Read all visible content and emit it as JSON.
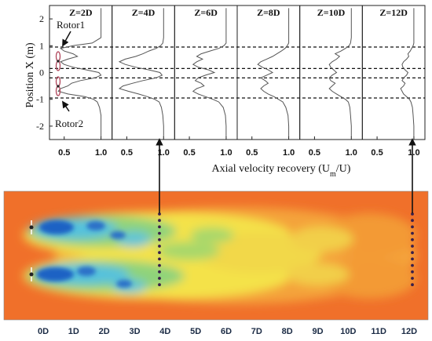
{
  "chart_data": [
    {
      "type": "line",
      "panels": [
        "Z=2D",
        "Z=4D",
        "Z=6D",
        "Z=8D",
        "Z=10D",
        "Z=12D"
      ],
      "ylabel": "Position X (m)",
      "xlabel_prefix": "Axial velocity recovery (U",
      "xlabel_sub": "m",
      "xlabel_suffix": "/U)",
      "yticks": [
        "2",
        "1",
        "0",
        "-1",
        "-2"
      ],
      "ylim": [
        -2.5,
        2.5
      ],
      "xticks": [
        "0.5",
        "1.0"
      ],
      "xlim": [
        0.3,
        1.15
      ],
      "dashed_lines_y": [
        0.95,
        0.15,
        -0.2,
        -0.95
      ],
      "rotor_labels": [
        "Rotor1",
        "Rotor2"
      ],
      "y": [
        -2.4,
        -2.0,
        -1.6,
        -1.3,
        -1.1,
        -1.0,
        -0.9,
        -0.8,
        -0.7,
        -0.6,
        -0.5,
        -0.4,
        -0.3,
        -0.2,
        -0.1,
        0.0,
        0.1,
        0.2,
        0.3,
        0.4,
        0.5,
        0.6,
        0.7,
        0.8,
        0.9,
        1.0,
        1.1,
        1.3,
        1.6,
        2.0,
        2.4
      ],
      "series": [
        {
          "panel": "Z=2D",
          "x": [
            1.0,
            1.0,
            1.0,
            0.98,
            0.95,
            0.9,
            0.78,
            0.55,
            0.42,
            0.45,
            0.55,
            0.6,
            0.72,
            0.92,
            1.0,
            0.97,
            0.8,
            0.62,
            0.5,
            0.45,
            0.55,
            0.68,
            0.62,
            0.5,
            0.45,
            0.62,
            0.88,
            1.0,
            1.0,
            1.0,
            1.0
          ]
        },
        {
          "panel": "Z=4D",
          "x": [
            1.0,
            1.0,
            0.99,
            0.97,
            0.94,
            0.88,
            0.78,
            0.66,
            0.52,
            0.4,
            0.45,
            0.58,
            0.72,
            0.9,
            0.98,
            0.95,
            0.8,
            0.62,
            0.48,
            0.4,
            0.48,
            0.62,
            0.72,
            0.8,
            0.9,
            0.96,
            0.99,
            1.0,
            1.0,
            1.0,
            1.0
          ]
        },
        {
          "panel": "Z=6D",
          "x": [
            1.0,
            1.0,
            0.99,
            0.96,
            0.9,
            0.82,
            0.72,
            0.62,
            0.55,
            0.6,
            0.7,
            0.66,
            0.58,
            0.62,
            0.72,
            0.84,
            0.76,
            0.62,
            0.55,
            0.6,
            0.68,
            0.6,
            0.66,
            0.78,
            0.9,
            0.97,
            1.0,
            1.0,
            1.0,
            1.0,
            1.0
          ]
        },
        {
          "panel": "Z=8D",
          "x": [
            1.0,
            1.0,
            0.99,
            0.96,
            0.92,
            0.86,
            0.8,
            0.72,
            0.66,
            0.62,
            0.66,
            0.72,
            0.68,
            0.62,
            0.7,
            0.78,
            0.72,
            0.64,
            0.58,
            0.62,
            0.7,
            0.78,
            0.84,
            0.9,
            0.95,
            0.98,
            1.0,
            1.0,
            1.0,
            1.0,
            1.0
          ]
        },
        {
          "panel": "Z=10D",
          "x": [
            1.0,
            1.0,
            0.99,
            0.98,
            0.96,
            0.92,
            0.86,
            0.8,
            0.74,
            0.7,
            0.74,
            0.78,
            0.72,
            0.7,
            0.74,
            0.8,
            0.76,
            0.72,
            0.7,
            0.74,
            0.8,
            0.84,
            0.78,
            0.86,
            0.92,
            0.97,
            0.99,
            1.0,
            1.0,
            1.0,
            1.0
          ]
        },
        {
          "panel": "Z=12D",
          "x": [
            1.0,
            1.0,
            0.99,
            0.98,
            0.96,
            0.94,
            0.9,
            0.86,
            0.84,
            0.82,
            0.86,
            0.88,
            0.84,
            0.86,
            0.9,
            0.92,
            0.88,
            0.85,
            0.84,
            0.86,
            0.9,
            0.93,
            0.92,
            0.95,
            0.97,
            0.99,
            1.0,
            1.0,
            1.0,
            1.0,
            1.0
          ]
        }
      ]
    },
    {
      "type": "heatmap",
      "xticks": [
        "0D",
        "1D",
        "2D",
        "3D",
        "4D",
        "5D",
        "6D",
        "7D",
        "8D",
        "9D",
        "10D",
        "11D",
        "12D"
      ],
      "probe_stations": [
        "4D",
        "12D"
      ],
      "colors": {
        "background": "#f0702a",
        "mid": "#f4a33a",
        "yellow": "#f4e24a",
        "green": "#8fd37a",
        "cyan": "#55c1dd",
        "blue": "#1f62c4",
        "probe_dot": "#3a1f4a",
        "arrow": "#111111"
      }
    }
  ]
}
